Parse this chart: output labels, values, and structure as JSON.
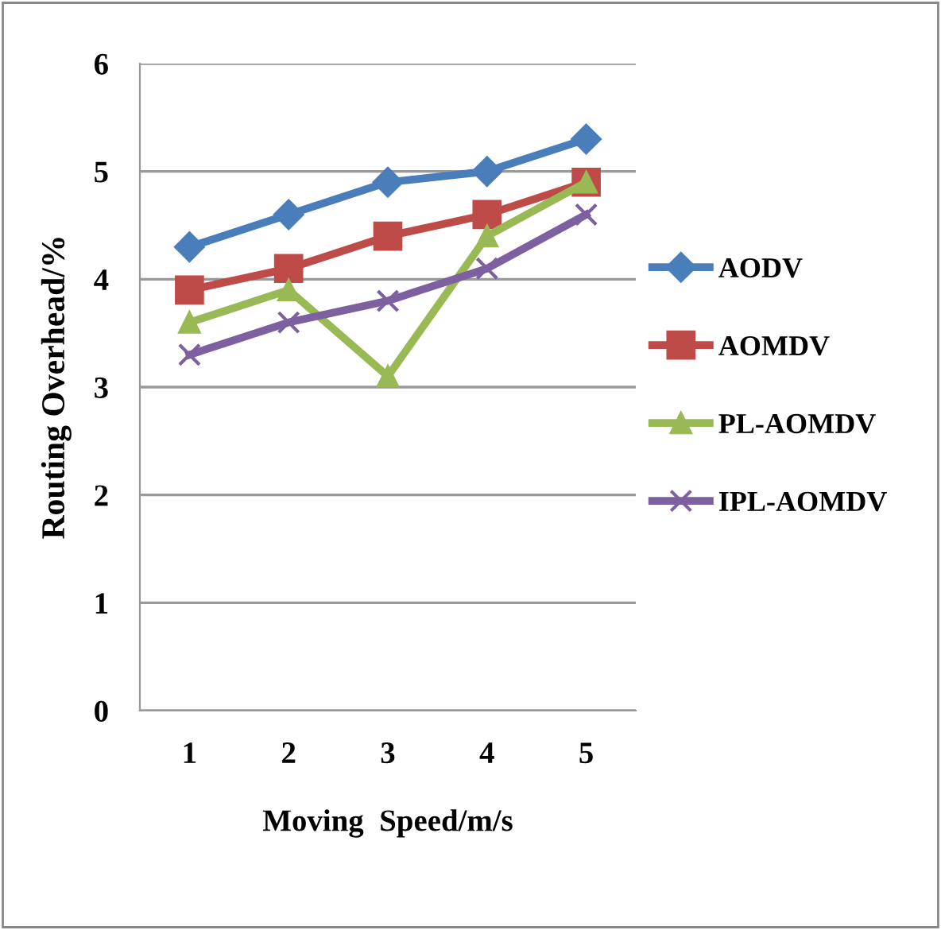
{
  "chart_data": {
    "type": "line",
    "xlabel": "Moving  Speed/m/s",
    "ylabel": "Routing Overhead/%",
    "categories": [
      "1",
      "2",
      "3",
      "4",
      "5"
    ],
    "series": [
      {
        "name": "AODV",
        "color": "#4a7ebb",
        "marker": "diamond",
        "values": [
          4.3,
          4.6,
          4.9,
          5.0,
          5.3
        ]
      },
      {
        "name": "AOMDV",
        "color": "#be4b48",
        "marker": "square",
        "values": [
          3.9,
          4.1,
          4.4,
          4.6,
          4.9
        ]
      },
      {
        "name": "PL-AOMDV",
        "color": "#98b954",
        "marker": "triangle",
        "values": [
          3.6,
          3.9,
          3.1,
          4.4,
          4.9
        ]
      },
      {
        "name": "IPL-AOMDV",
        "color": "#7d60a0",
        "marker": "cross",
        "values": [
          3.3,
          3.6,
          3.8,
          4.1,
          4.6
        ]
      }
    ],
    "ylim": [
      0,
      6
    ],
    "yticks": [
      0,
      1,
      2,
      3,
      4,
      5,
      6
    ],
    "grid": "y",
    "legend": "right",
    "line_style": "solid"
  }
}
